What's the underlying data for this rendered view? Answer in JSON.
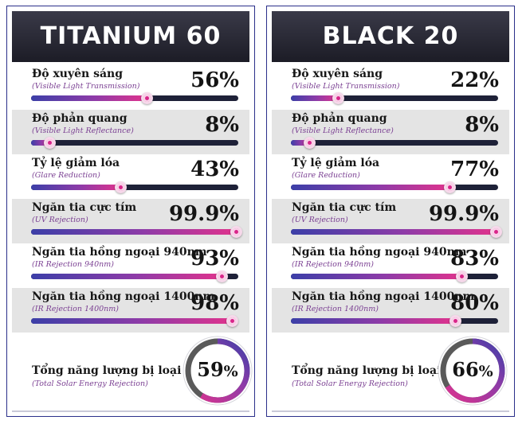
{
  "colors": {
    "header_bg": "#1c1c26",
    "accent_pink": "#e0338d",
    "accent_blue": "#3c3fa8",
    "track": "#1e2138",
    "subtitle": "#7a3f92",
    "shade_row": "#e4e4e4"
  },
  "cards": [
    {
      "title": "TITANIUM 60",
      "metrics": [
        {
          "label": "Độ xuyên sáng",
          "sub": "(Visible Light Transmission)",
          "value": "56%",
          "level": 56
        },
        {
          "label": "Độ phản quang",
          "sub": "(Visible Light Reflectance)",
          "value": "8%",
          "level": 8
        },
        {
          "label": "Tỷ lệ giảm lóa",
          "sub": "(Glare Reduction)",
          "value": "43%",
          "level": 43
        },
        {
          "label": "Ngăn tia cực tím",
          "sub": "(UV Rejection)",
          "value": "99.9%",
          "level": 99.9
        },
        {
          "label": "Ngăn tia hồng ngoại 940nm",
          "sub": "(IR Rejection 940nm)",
          "value": "93%",
          "level": 93
        },
        {
          "label": "Ngăn tia hồng ngoại 1400nm",
          "sub": "(IR Rejection 1400nm)",
          "value": "98%",
          "level": 98
        }
      ],
      "total": {
        "label": "Tổng năng lượng bị loại bỏ",
        "sub": "(Total Solar Energy Rejection)",
        "value": "59",
        "unit": "%",
        "level": 59
      }
    },
    {
      "title": "BLACK 20",
      "metrics": [
        {
          "label": "Độ xuyên sáng",
          "sub": "(Visible Light Transmission)",
          "value": "22%",
          "level": 22
        },
        {
          "label": "Độ phản quang",
          "sub": "(Visible Light Reflectance)",
          "value": "8%",
          "level": 8
        },
        {
          "label": "Tỷ lệ giảm lóa",
          "sub": "(Glare Reduction)",
          "value": "77%",
          "level": 77
        },
        {
          "label": "Ngăn tia cực tím",
          "sub": "(UV Rejection)",
          "value": "99.9%",
          "level": 99.9
        },
        {
          "label": "Ngăn tia hồng ngoại 940nm",
          "sub": "(IR Rejection 940nm)",
          "value": "83%",
          "level": 83
        },
        {
          "label": "Ngăn tia hồng ngoại 1400nm",
          "sub": "(IR Rejection 1400nm)",
          "value": "80%",
          "level": 80
        }
      ],
      "total": {
        "label": "Tổng năng lượng bị loại bỏ",
        "sub": "(Total Solar Energy Rejection)",
        "value": "66",
        "unit": "%",
        "level": 66
      }
    }
  ]
}
